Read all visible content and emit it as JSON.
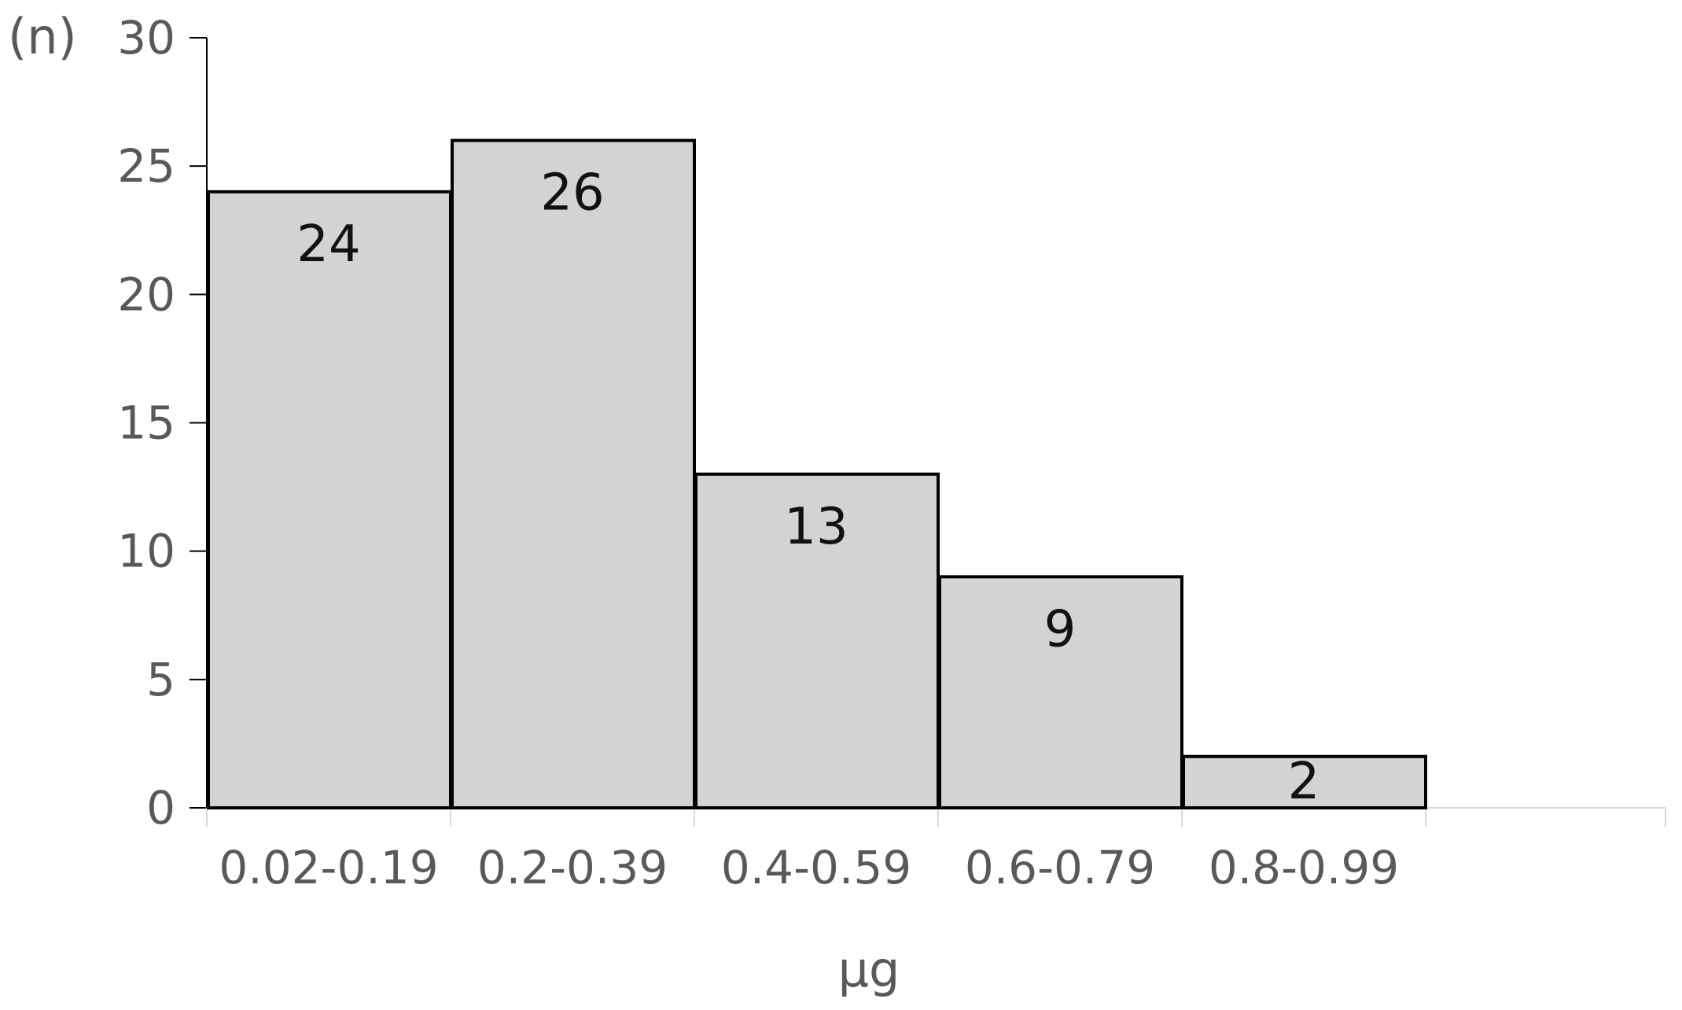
{
  "chart_data": {
    "type": "bar",
    "categories": [
      "0.02-0.19",
      "0.2-0.39",
      "0.4-0.59",
      "0.6-0.79",
      "0.8-0.99"
    ],
    "values": [
      24,
      26,
      13,
      9,
      2
    ],
    "data_labels": [
      "24",
      "26",
      "13",
      "9",
      "2"
    ],
    "xlabel": "μg",
    "ylabel": "(n)",
    "ylim": [
      0,
      30
    ],
    "yticks": [
      0,
      5,
      10,
      15,
      20,
      25,
      30
    ],
    "grid": false,
    "legend": "none",
    "bar_fill": "#d3d3d3",
    "bar_stroke": "#000000",
    "text_color": "#595959",
    "label_color": "#111111"
  }
}
